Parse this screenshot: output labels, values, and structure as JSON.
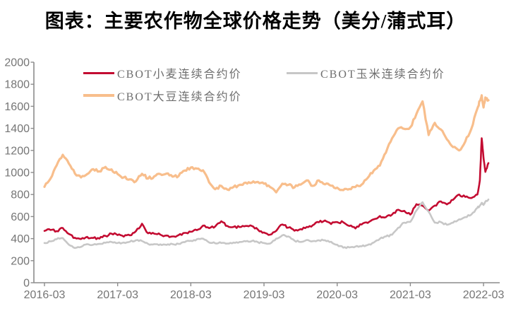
{
  "chart_data": {
    "type": "line",
    "title": "图表：主要农作物全球价格走势（美分/蒲式耳）",
    "unit": "美分/蒲式耳",
    "grid": false,
    "legend_position": "top",
    "ylim": [
      0,
      2000
    ],
    "y_ticks": [
      0,
      200,
      400,
      600,
      800,
      1000,
      1200,
      1400,
      1600,
      1800,
      2000
    ],
    "x_tick_labels": [
      "2016-03",
      "2017-03",
      "2018-03",
      "2019-03",
      "2020-03",
      "2021-03",
      "2022-03"
    ],
    "x_tick_month_indices": [
      0,
      12,
      24,
      36,
      48,
      60,
      72
    ],
    "x_start": "2016-03",
    "x_months": [
      0,
      1,
      2,
      3,
      4,
      5,
      6,
      7,
      8,
      9,
      10,
      11,
      12,
      13,
      14,
      15,
      16,
      17,
      18,
      19,
      20,
      21,
      22,
      23,
      24,
      25,
      26,
      27,
      28,
      29,
      30,
      31,
      32,
      33,
      34,
      35,
      36,
      37,
      38,
      39,
      40,
      41,
      42,
      43,
      44,
      45,
      46,
      47,
      48,
      49,
      50,
      51,
      52,
      53,
      54,
      55,
      56,
      57,
      58,
      59,
      60,
      61,
      62,
      63,
      64,
      65,
      66,
      67,
      68,
      69,
      70,
      71,
      71.4,
      71.7,
      72.0,
      72.3,
      72.8
    ],
    "axis_color": "#8c8c8c",
    "tick_label_color": "#757575",
    "series": [
      {
        "name": "CBOT小麦连续合约价",
        "color": "#C30B31",
        "stroke_width": 2.6,
        "jitter": 11,
        "values": [
          470,
          478,
          468,
          497,
          442,
          408,
          396,
          416,
          406,
          400,
          425,
          445,
          432,
          418,
          430,
          468,
          535,
          448,
          445,
          436,
          428,
          420,
          432,
          452,
          462,
          477,
          518,
          495,
          510,
          558,
          515,
          506,
          505,
          515,
          515,
          482,
          456,
          436,
          470,
          528,
          500,
          472,
          486,
          506,
          522,
          548,
          565,
          532,
          550,
          548,
          515,
          492,
          528,
          542,
          575,
          605,
          595,
          618,
          662,
          652,
          618,
          712,
          698,
          652,
          700,
          738,
          710,
          752,
          800,
          778,
          768,
          800,
          930,
          1310,
          1130,
          1005,
          1085
        ]
      },
      {
        "name": "CBOT大豆连续合约价",
        "color": "#F8BE8C",
        "stroke_width": 3.2,
        "jitter": 13,
        "values": [
          870,
          945,
          1065,
          1160,
          1080,
          990,
          955,
          985,
          1030,
          1010,
          1050,
          1028,
          985,
          955,
          938,
          920,
          988,
          945,
          965,
          985,
          990,
          962,
          968,
          1018,
          1045,
          1035,
          1020,
          910,
          848,
          878,
          845,
          868,
          888,
          908,
          908,
          915,
          898,
          868,
          820,
          898,
          888,
          865,
          890,
          928,
          878,
          928,
          892,
          880,
          862,
          840,
          850,
          868,
          890,
          950,
          1018,
          1062,
          1180,
          1310,
          1400,
          1395,
          1410,
          1530,
          1645,
          1340,
          1450,
          1390,
          1300,
          1230,
          1200,
          1280,
          1395,
          1580,
          1650,
          1700,
          1590,
          1680,
          1655
        ]
      },
      {
        "name": "CBOT玉米连续合约价",
        "color": "#C7C7C7",
        "stroke_width": 2.6,
        "jitter": 8,
        "values": [
          360,
          375,
          395,
          405,
          345,
          315,
          325,
          350,
          345,
          352,
          362,
          370,
          360,
          365,
          372,
          385,
          378,
          352,
          350,
          348,
          343,
          350,
          352,
          368,
          380,
          395,
          400,
          365,
          358,
          360,
          355,
          365,
          370,
          375,
          378,
          368,
          360,
          355,
          400,
          430,
          420,
          382,
          370,
          388,
          377,
          385,
          385,
          372,
          345,
          318,
          320,
          328,
          330,
          342,
          365,
          398,
          420,
          435,
          498,
          545,
          552,
          655,
          730,
          645,
          545,
          550,
          525,
          545,
          575,
          595,
          618,
          680,
          700,
          725,
          705,
          735,
          755
        ]
      }
    ]
  }
}
